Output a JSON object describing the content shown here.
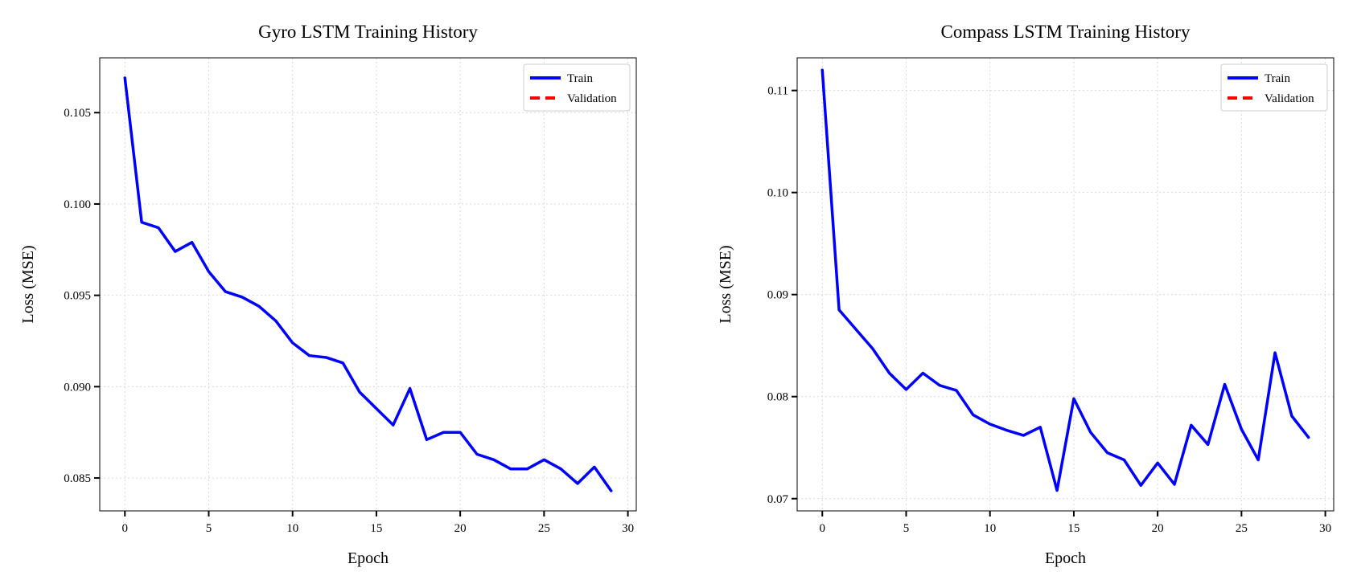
{
  "chart_data": [
    {
      "type": "line",
      "title": "Gyro LSTM Training History",
      "xlabel": "Epoch",
      "ylabel": "Loss (MSE)",
      "xlim": [
        -1.5,
        30.5
      ],
      "ylim": [
        0.0832,
        0.108
      ],
      "xticks": [
        0,
        5,
        10,
        15,
        20,
        25,
        30
      ],
      "xtick_labels": [
        "0",
        "5",
        "10",
        "15",
        "20",
        "25",
        "30"
      ],
      "yticks": [
        0.085,
        0.09,
        0.095,
        0.1,
        0.105
      ],
      "ytick_labels": [
        "0.085",
        "0.090",
        "0.095",
        "0.100",
        "0.105"
      ],
      "grid": true,
      "legend_position": "top-right",
      "legend": [
        {
          "name": "Train",
          "color": "#0000ff",
          "style": "solid"
        },
        {
          "name": "Validation",
          "color": "#ff0000",
          "style": "dashed"
        }
      ],
      "series": [
        {
          "name": "Train",
          "color": "#0000ff",
          "x": [
            0,
            1,
            2,
            3,
            4,
            5,
            6,
            7,
            8,
            9,
            10,
            11,
            12,
            13,
            14,
            15,
            16,
            17,
            18,
            19,
            20,
            21,
            22,
            23,
            24,
            25,
            26,
            27,
            28,
            29
          ],
          "values": [
            0.1069,
            0.099,
            0.0987,
            0.0974,
            0.0979,
            0.0963,
            0.0952,
            0.0949,
            0.0944,
            0.0936,
            0.0924,
            0.0917,
            0.0916,
            0.0913,
            0.0897,
            0.0888,
            0.0879,
            0.0899,
            0.0871,
            0.0875,
            0.0875,
            0.0863,
            0.086,
            0.0855,
            0.0855,
            0.086,
            0.0855,
            0.0847,
            0.0856,
            0.0843
          ]
        },
        {
          "name": "Validation",
          "color": "#ff0000",
          "x": [],
          "values": []
        }
      ]
    },
    {
      "type": "line",
      "title": "Compass LSTM Training History",
      "xlabel": "Epoch",
      "ylabel": "Loss (MSE)",
      "xlim": [
        -1.5,
        30.5
      ],
      "ylim": [
        0.0688,
        0.1132
      ],
      "xticks": [
        0,
        5,
        10,
        15,
        20,
        25,
        30
      ],
      "xtick_labels": [
        "0",
        "5",
        "10",
        "15",
        "20",
        "25",
        "30"
      ],
      "yticks": [
        0.07,
        0.08,
        0.09,
        0.1,
        0.11
      ],
      "ytick_labels": [
        "0.07",
        "0.08",
        "0.09",
        "0.10",
        "0.11"
      ],
      "grid": true,
      "legend_position": "top-right",
      "legend": [
        {
          "name": "Train",
          "color": "#0000ff",
          "style": "solid"
        },
        {
          "name": "Validation",
          "color": "#ff0000",
          "style": "dashed"
        }
      ],
      "series": [
        {
          "name": "Train",
          "color": "#0000ff",
          "x": [
            0,
            1,
            2,
            3,
            4,
            5,
            6,
            7,
            8,
            9,
            10,
            11,
            12,
            13,
            14,
            15,
            16,
            17,
            18,
            19,
            20,
            21,
            22,
            23,
            24,
            25,
            26,
            27,
            28,
            29
          ],
          "values": [
            0.112,
            0.0885,
            0.0866,
            0.0847,
            0.0823,
            0.0807,
            0.0823,
            0.0811,
            0.0806,
            0.0782,
            0.0773,
            0.0767,
            0.0762,
            0.077,
            0.0708,
            0.0798,
            0.0765,
            0.0745,
            0.0738,
            0.0713,
            0.0735,
            0.0714,
            0.0772,
            0.0753,
            0.0812,
            0.0768,
            0.0738,
            0.0843,
            0.0781,
            0.076
          ]
        },
        {
          "name": "Validation",
          "color": "#ff0000",
          "x": [],
          "values": []
        }
      ]
    }
  ]
}
